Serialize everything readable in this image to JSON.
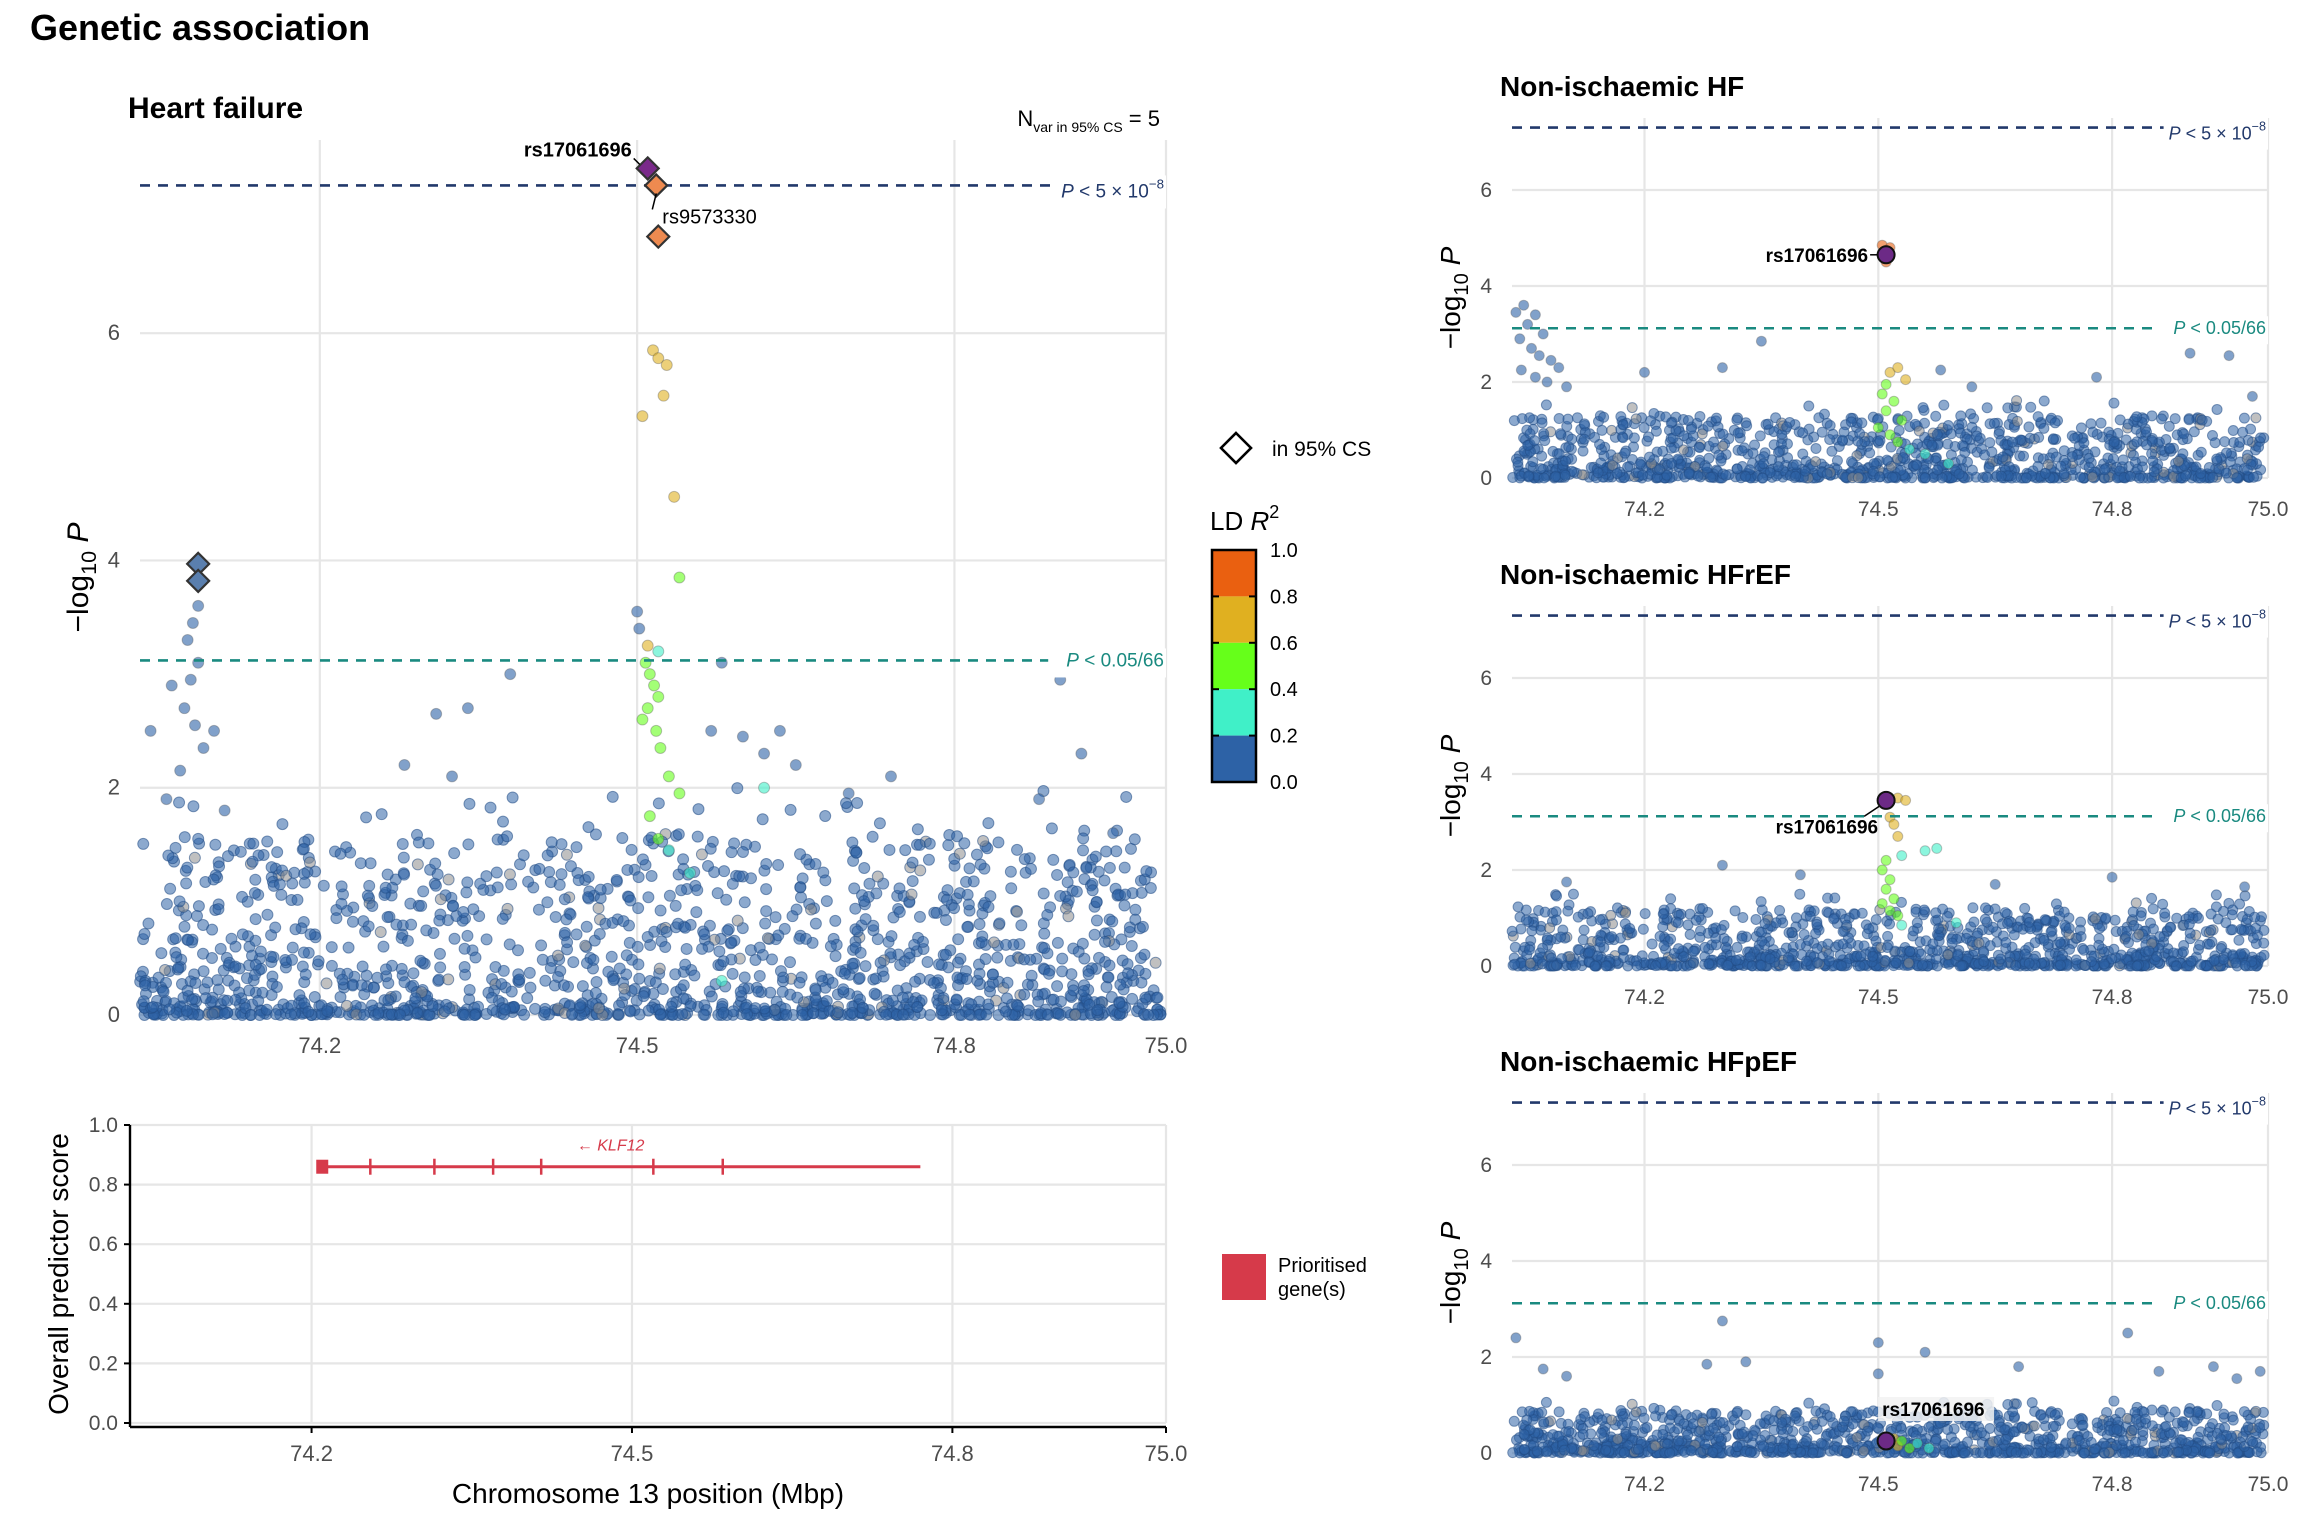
{
  "figure_title": "Genetic association",
  "colors": {
    "p_genome_line": "#22396b",
    "p_bonf_line": "#1a8a80",
    "gene_color": "#d63a4a",
    "point_default": "#2d62a6",
    "legend_ld": [
      "#2d62a6",
      "#40f0c8",
      "#66ff1a",
      "#e0b020",
      "#ea6010"
    ]
  },
  "legend": {
    "cs_label": "in 95% CS",
    "ld_title": "LD ",
    "ld_title_var": "R",
    "ld_title_sup": "2",
    "ld_ticks": [
      "1.0",
      "0.8",
      "0.6",
      "0.4",
      "0.2",
      "0.0"
    ],
    "gene_label_1": "Prioritised",
    "gene_label_2": "gene(s)"
  },
  "axis_common": {
    "x_ticks": [
      "74.2",
      "74.5",
      "74.8",
      "75.0"
    ],
    "y_ticks": [
      "0",
      "2",
      "4",
      "6"
    ],
    "y_label": "−log",
    "y_label_sub": "10",
    "y_label_var": "P",
    "thr_genome": "P < 5 × 10",
    "thr_genome_exp": "−8",
    "thr_bonf": "P < 0.05/66"
  },
  "gene_track": {
    "y_label": "Overall predictor score",
    "x_label": "Chromosome 13 position (Mbp)",
    "y_ticks": [
      "0.0",
      "0.2",
      "0.4",
      "0.6",
      "0.8",
      "1.0"
    ],
    "gene_name": "KLF12",
    "gene_arrow": "← ",
    "gene_score": 0.86,
    "gene_start": 74.21,
    "gene_end": 74.77,
    "exons": [
      74.21,
      74.255,
      74.315,
      74.37,
      74.415,
      74.52,
      74.585
    ]
  },
  "chart_data": [
    {
      "type": "scatter",
      "title": "Heart failure",
      "annotation": "N",
      "annotation_sub": "var in 95% CS",
      "annotation_val": " = 5",
      "xlabel": "",
      "ylabel": "−log10 P",
      "xlim": [
        74.03,
        75.0
      ],
      "ylim": [
        0,
        7.7
      ],
      "threshold_genome": 7.3,
      "threshold_bonf": 3.12,
      "background_density": "dense",
      "background_max": 1.6,
      "credible_set": [
        {
          "x": 74.51,
          "y": 7.45,
          "ld": 1.0,
          "lead": true
        },
        {
          "x": 74.518,
          "y": 7.3,
          "ld": 0.9
        },
        {
          "x": 74.52,
          "y": 6.85,
          "ld": 0.85
        },
        {
          "x": 74.085,
          "y": 3.97,
          "ld": 0.0
        },
        {
          "x": 74.085,
          "y": 3.82,
          "ld": 0.0
        }
      ],
      "labels": [
        {
          "text": "rs17061696",
          "x": 74.51,
          "y": 7.45,
          "bold": true,
          "side": "left"
        },
        {
          "text": "rs9573330",
          "x": 74.52,
          "y": 7.3,
          "bold": false,
          "side": "below"
        }
      ],
      "points": [
        {
          "x": 74.515,
          "y": 5.85,
          "ld": 0.6
        },
        {
          "x": 74.52,
          "y": 5.78,
          "ld": 0.6
        },
        {
          "x": 74.528,
          "y": 5.72,
          "ld": 0.6
        },
        {
          "x": 74.505,
          "y": 5.27,
          "ld": 0.6
        },
        {
          "x": 74.525,
          "y": 5.45,
          "ld": 0.6
        },
        {
          "x": 74.535,
          "y": 4.56,
          "ld": 0.6
        },
        {
          "x": 74.54,
          "y": 3.85,
          "ld": 0.4
        },
        {
          "x": 74.5,
          "y": 3.55,
          "ld": 0.0
        },
        {
          "x": 74.502,
          "y": 3.4,
          "ld": 0.0
        },
        {
          "x": 74.51,
          "y": 3.25,
          "ld": 0.6
        },
        {
          "x": 74.52,
          "y": 3.2,
          "ld": 0.3
        },
        {
          "x": 74.508,
          "y": 3.1,
          "ld": 0.4
        },
        {
          "x": 74.512,
          "y": 3.0,
          "ld": 0.4
        },
        {
          "x": 74.516,
          "y": 2.9,
          "ld": 0.4
        },
        {
          "x": 74.52,
          "y": 2.8,
          "ld": 0.4
        },
        {
          "x": 74.51,
          "y": 2.7,
          "ld": 0.4
        },
        {
          "x": 74.505,
          "y": 2.6,
          "ld": 0.4
        },
        {
          "x": 74.518,
          "y": 2.5,
          "ld": 0.4
        },
        {
          "x": 74.522,
          "y": 2.35,
          "ld": 0.4
        },
        {
          "x": 74.53,
          "y": 2.1,
          "ld": 0.4
        },
        {
          "x": 74.54,
          "y": 1.95,
          "ld": 0.4
        },
        {
          "x": 74.512,
          "y": 1.75,
          "ld": 0.4
        },
        {
          "x": 74.52,
          "y": 1.55,
          "ld": 0.4
        },
        {
          "x": 74.53,
          "y": 1.45,
          "ld": 0.2
        },
        {
          "x": 74.55,
          "y": 1.25,
          "ld": 0.2
        },
        {
          "x": 74.62,
          "y": 2.0,
          "ld": 0.2
        },
        {
          "x": 74.58,
          "y": 0.3,
          "ld": 0.2
        },
        {
          "x": 74.085,
          "y": 3.6,
          "ld": 0.0
        },
        {
          "x": 74.08,
          "y": 3.45,
          "ld": 0.0
        },
        {
          "x": 74.075,
          "y": 3.3,
          "ld": 0.0
        },
        {
          "x": 74.085,
          "y": 3.1,
          "ld": 0.0
        },
        {
          "x": 74.078,
          "y": 2.95,
          "ld": 0.0
        },
        {
          "x": 74.072,
          "y": 2.7,
          "ld": 0.0
        },
        {
          "x": 74.082,
          "y": 2.55,
          "ld": 0.0
        },
        {
          "x": 74.09,
          "y": 2.35,
          "ld": 0.0
        },
        {
          "x": 74.068,
          "y": 2.15,
          "ld": 0.0
        },
        {
          "x": 74.04,
          "y": 2.5,
          "ld": 0.0
        },
        {
          "x": 74.06,
          "y": 2.9,
          "ld": 0.0
        },
        {
          "x": 74.1,
          "y": 2.5,
          "ld": 0.0
        },
        {
          "x": 74.055,
          "y": 1.9,
          "ld": 0.0
        },
        {
          "x": 74.11,
          "y": 1.8,
          "ld": 0.0
        },
        {
          "x": 74.31,
          "y": 2.65,
          "ld": 0.0
        },
        {
          "x": 74.34,
          "y": 2.7,
          "ld": 0.0
        },
        {
          "x": 74.28,
          "y": 2.2,
          "ld": 0.0
        },
        {
          "x": 74.325,
          "y": 2.1,
          "ld": 0.0
        },
        {
          "x": 74.38,
          "y": 3.0,
          "ld": 0.0
        },
        {
          "x": 74.57,
          "y": 2.5,
          "ld": 0.0
        },
        {
          "x": 74.6,
          "y": 2.45,
          "ld": 0.0
        },
        {
          "x": 74.62,
          "y": 2.3,
          "ld": 0.0
        },
        {
          "x": 74.65,
          "y": 2.2,
          "ld": 0.0
        },
        {
          "x": 74.58,
          "y": 3.1,
          "ld": 0.0
        },
        {
          "x": 74.635,
          "y": 2.5,
          "ld": 0.0
        },
        {
          "x": 74.7,
          "y": 1.95,
          "ld": 0.0
        },
        {
          "x": 74.74,
          "y": 2.1,
          "ld": 0.0
        },
        {
          "x": 74.9,
          "y": 2.95,
          "ld": 0.0
        },
        {
          "x": 74.92,
          "y": 2.3,
          "ld": 0.0
        },
        {
          "x": 74.88,
          "y": 1.9,
          "ld": 0.0
        },
        {
          "x": 74.95,
          "y": 1.6,
          "ld": 0.0
        }
      ]
    },
    {
      "type": "scatter",
      "title": "Non-ischaemic HF",
      "xlim": [
        74.03,
        75.0
      ],
      "ylim": [
        0,
        7.5
      ],
      "threshold_genome": 7.3,
      "threshold_bonf": 3.12,
      "background_density": "dense",
      "background_max": 1.3,
      "lead": {
        "x": 74.51,
        "y": 4.65,
        "ld": 1.0,
        "label": "rs17061696",
        "side": "left"
      },
      "points": [
        {
          "x": 74.505,
          "y": 4.85,
          "ld": 0.9
        },
        {
          "x": 74.515,
          "y": 4.8,
          "ld": 0.9
        },
        {
          "x": 74.51,
          "y": 4.5,
          "ld": 0.9
        },
        {
          "x": 74.515,
          "y": 2.2,
          "ld": 0.6
        },
        {
          "x": 74.525,
          "y": 2.3,
          "ld": 0.6
        },
        {
          "x": 74.535,
          "y": 2.05,
          "ld": 0.6
        },
        {
          "x": 74.51,
          "y": 1.95,
          "ld": 0.4
        },
        {
          "x": 74.505,
          "y": 1.75,
          "ld": 0.4
        },
        {
          "x": 74.52,
          "y": 1.6,
          "ld": 0.4
        },
        {
          "x": 74.51,
          "y": 1.4,
          "ld": 0.4
        },
        {
          "x": 74.53,
          "y": 1.2,
          "ld": 0.4
        },
        {
          "x": 74.5,
          "y": 1.05,
          "ld": 0.4
        },
        {
          "x": 74.515,
          "y": 0.9,
          "ld": 0.4
        },
        {
          "x": 74.525,
          "y": 0.75,
          "ld": 0.4
        },
        {
          "x": 74.54,
          "y": 0.6,
          "ld": 0.2
        },
        {
          "x": 74.56,
          "y": 0.5,
          "ld": 0.2
        },
        {
          "x": 74.59,
          "y": 0.3,
          "ld": 0.2
        },
        {
          "x": 74.035,
          "y": 3.45,
          "ld": 0.0
        },
        {
          "x": 74.045,
          "y": 3.6,
          "ld": 0.0
        },
        {
          "x": 74.06,
          "y": 3.4,
          "ld": 0.0
        },
        {
          "x": 74.05,
          "y": 3.2,
          "ld": 0.0
        },
        {
          "x": 74.07,
          "y": 3.0,
          "ld": 0.0
        },
        {
          "x": 74.04,
          "y": 2.9,
          "ld": 0.0
        },
        {
          "x": 74.055,
          "y": 2.7,
          "ld": 0.0
        },
        {
          "x": 74.065,
          "y": 2.55,
          "ld": 0.0
        },
        {
          "x": 74.08,
          "y": 2.45,
          "ld": 0.0
        },
        {
          "x": 74.042,
          "y": 2.25,
          "ld": 0.0
        },
        {
          "x": 74.06,
          "y": 2.1,
          "ld": 0.0
        },
        {
          "x": 74.09,
          "y": 2.3,
          "ld": 0.0
        },
        {
          "x": 74.075,
          "y": 2.0,
          "ld": 0.0
        },
        {
          "x": 74.1,
          "y": 1.9,
          "ld": 0.0
        },
        {
          "x": 74.35,
          "y": 2.85,
          "ld": 0.0
        },
        {
          "x": 74.3,
          "y": 2.3,
          "ld": 0.0
        },
        {
          "x": 74.2,
          "y": 2.2,
          "ld": 0.0
        },
        {
          "x": 74.58,
          "y": 2.25,
          "ld": 0.0
        },
        {
          "x": 74.62,
          "y": 1.9,
          "ld": 0.0
        },
        {
          "x": 74.78,
          "y": 2.1,
          "ld": 0.0
        },
        {
          "x": 74.9,
          "y": 2.6,
          "ld": 0.0
        },
        {
          "x": 74.95,
          "y": 2.55,
          "ld": 0.0
        },
        {
          "x": 74.98,
          "y": 1.7,
          "ld": 0.0
        }
      ]
    },
    {
      "type": "scatter",
      "title": "Non-ischaemic HFrEF",
      "xlim": [
        74.03,
        75.0
      ],
      "ylim": [
        0,
        7.5
      ],
      "threshold_genome": 7.3,
      "threshold_bonf": 3.12,
      "background_density": "dense",
      "background_max": 1.2,
      "lead": {
        "x": 74.51,
        "y": 3.45,
        "ld": 1.0,
        "label": "rs17061696",
        "side": "below-left"
      },
      "points": [
        {
          "x": 74.525,
          "y": 3.5,
          "ld": 0.6
        },
        {
          "x": 74.535,
          "y": 3.45,
          "ld": 0.6
        },
        {
          "x": 74.515,
          "y": 3.1,
          "ld": 0.6
        },
        {
          "x": 74.52,
          "y": 2.95,
          "ld": 0.6
        },
        {
          "x": 74.525,
          "y": 2.7,
          "ld": 0.6
        },
        {
          "x": 74.56,
          "y": 2.4,
          "ld": 0.2
        },
        {
          "x": 74.575,
          "y": 2.45,
          "ld": 0.2
        },
        {
          "x": 74.53,
          "y": 2.3,
          "ld": 0.2
        },
        {
          "x": 74.51,
          "y": 2.2,
          "ld": 0.4
        },
        {
          "x": 74.505,
          "y": 2.0,
          "ld": 0.4
        },
        {
          "x": 74.515,
          "y": 1.8,
          "ld": 0.4
        },
        {
          "x": 74.51,
          "y": 1.6,
          "ld": 0.4
        },
        {
          "x": 74.52,
          "y": 1.4,
          "ld": 0.4
        },
        {
          "x": 74.505,
          "y": 1.3,
          "ld": 0.4
        },
        {
          "x": 74.515,
          "y": 1.15,
          "ld": 0.4
        },
        {
          "x": 74.525,
          "y": 1.05,
          "ld": 0.4
        },
        {
          "x": 74.53,
          "y": 0.85,
          "ld": 0.2
        },
        {
          "x": 74.6,
          "y": 0.9,
          "ld": 0.2
        },
        {
          "x": 74.3,
          "y": 2.1,
          "ld": 0.0
        },
        {
          "x": 74.4,
          "y": 1.9,
          "ld": 0.0
        },
        {
          "x": 74.65,
          "y": 1.7,
          "ld": 0.0
        },
        {
          "x": 74.8,
          "y": 1.85,
          "ld": 0.0
        },
        {
          "x": 74.97,
          "y": 1.65,
          "ld": 0.0
        },
        {
          "x": 74.1,
          "y": 1.75,
          "ld": 0.0
        }
      ]
    },
    {
      "type": "scatter",
      "title": "Non-ischaemic HFpEF",
      "xlim": [
        74.03,
        75.0
      ],
      "ylim": [
        0,
        7.5
      ],
      "threshold_genome": 7.3,
      "threshold_bonf": 3.12,
      "background_density": "dense",
      "background_max": 0.9,
      "lead": {
        "x": 74.51,
        "y": 0.25,
        "ld": 1.0,
        "label": "rs17061696",
        "side": "above-right"
      },
      "points": [
        {
          "x": 74.52,
          "y": 0.3,
          "ld": 0.6
        },
        {
          "x": 74.525,
          "y": 0.15,
          "ld": 0.6
        },
        {
          "x": 74.53,
          "y": 0.25,
          "ld": 0.4
        },
        {
          "x": 74.54,
          "y": 0.1,
          "ld": 0.4
        },
        {
          "x": 74.55,
          "y": 0.2,
          "ld": 0.2
        },
        {
          "x": 74.565,
          "y": 0.1,
          "ld": 0.2
        },
        {
          "x": 74.035,
          "y": 2.4,
          "ld": 0.0
        },
        {
          "x": 74.07,
          "y": 1.75,
          "ld": 0.0
        },
        {
          "x": 74.1,
          "y": 1.6,
          "ld": 0.0
        },
        {
          "x": 74.28,
          "y": 1.85,
          "ld": 0.0
        },
        {
          "x": 74.3,
          "y": 2.75,
          "ld": 0.0
        },
        {
          "x": 74.33,
          "y": 1.9,
          "ld": 0.0
        },
        {
          "x": 74.5,
          "y": 2.3,
          "ld": 0.0
        },
        {
          "x": 74.5,
          "y": 1.65,
          "ld": 0.0
        },
        {
          "x": 74.56,
          "y": 2.1,
          "ld": 0.0
        },
        {
          "x": 74.68,
          "y": 1.8,
          "ld": 0.0
        },
        {
          "x": 74.82,
          "y": 2.5,
          "ld": 0.0
        },
        {
          "x": 74.86,
          "y": 1.7,
          "ld": 0.0
        },
        {
          "x": 74.93,
          "y": 1.8,
          "ld": 0.0
        },
        {
          "x": 74.96,
          "y": 1.55,
          "ld": 0.0
        },
        {
          "x": 74.99,
          "y": 1.7,
          "ld": 0.0
        }
      ]
    }
  ]
}
